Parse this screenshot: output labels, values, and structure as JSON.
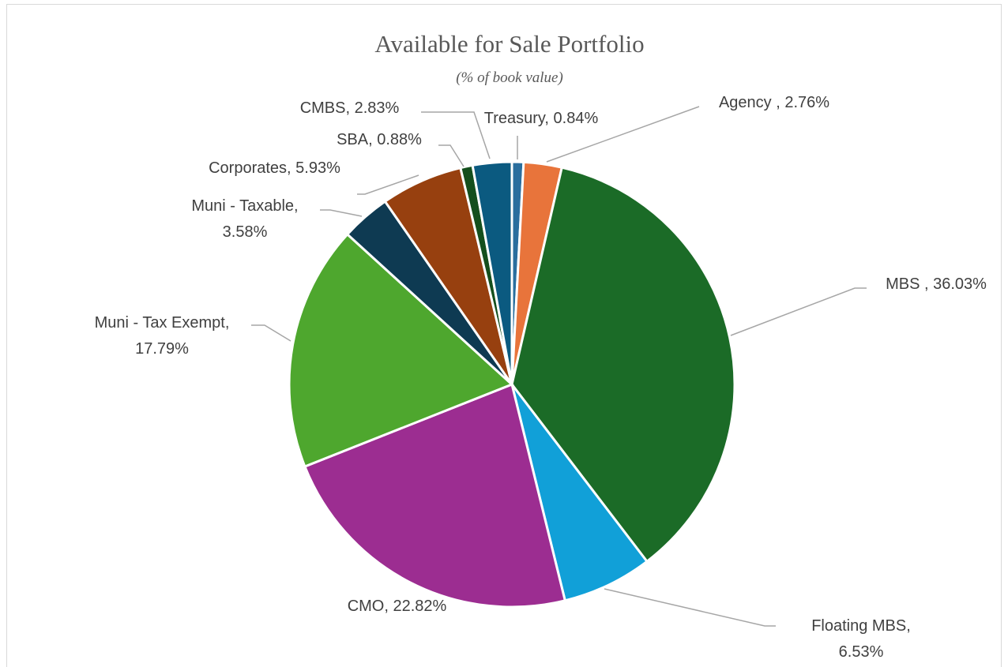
{
  "chart_data": {
    "type": "pie",
    "title": "Available for Sale Portfolio",
    "subtitle": "(% of book value)",
    "values": [
      0.84,
      2.76,
      36.03,
      6.53,
      22.82,
      17.79,
      3.58,
      5.93,
      0.88,
      2.83
    ],
    "value_labels": [
      "Treasury, 0.84%",
      "Agency , 2.76%",
      "MBS , 36.03%",
      "Floating MBS,\n6.53%",
      "CMO, 22.82%",
      "Muni - Tax Exempt,\n17.79%",
      "Muni - Taxable,\n3.58%",
      "Corporates, 5.93%",
      "SBA, 0.88%",
      "CMBS, 2.83%"
    ],
    "colors": [
      "#2a6e9e",
      "#e8743b",
      "#1b6b27",
      "#11a0d8",
      "#9c2d91",
      "#4ea72e",
      "#0e3a52",
      "#97400f",
      "#144f1d",
      "#0b5a80"
    ]
  }
}
